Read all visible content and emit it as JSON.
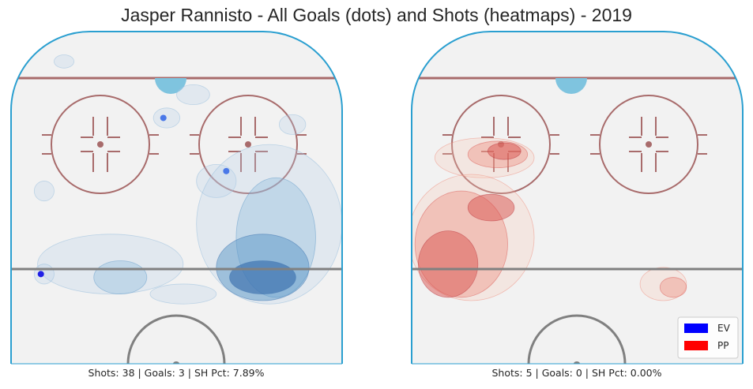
{
  "chart_data": {
    "type": "heatmap",
    "title": "Jasper Rannisto - All Goals (dots) and Shots (heatmaps) - 2019",
    "legend": {
      "placement": "bottom-right",
      "entries": [
        {
          "label": "EV",
          "color": "#0000ff"
        },
        {
          "label": "PP",
          "color": "#ff0000"
        }
      ]
    },
    "panels": [
      {
        "name": "EV",
        "caption": "Shots: 38 | Goals: 3 | SH Pct: 7.89%",
        "shots": 38,
        "goals": 3,
        "sh_pct": 7.89,
        "heatmap_color": "#2166ac",
        "goal_dots": [
          {
            "x": 0.46,
            "y": 0.26
          },
          {
            "x": 0.65,
            "y": 0.42
          },
          {
            "x": 0.09,
            "y": 0.73
          }
        ],
        "heat_blobs": [
          {
            "cx": 0.76,
            "cy": 0.74,
            "rx": 0.1,
            "ry": 0.05,
            "level": 4
          },
          {
            "cx": 0.76,
            "cy": 0.71,
            "rx": 0.14,
            "ry": 0.1,
            "level": 3
          },
          {
            "cx": 0.8,
            "cy": 0.62,
            "rx": 0.12,
            "ry": 0.18,
            "level": 2
          },
          {
            "cx": 0.33,
            "cy": 0.74,
            "rx": 0.08,
            "ry": 0.05,
            "level": 2
          },
          {
            "cx": 0.62,
            "cy": 0.45,
            "rx": 0.06,
            "ry": 0.05,
            "level": 1
          },
          {
            "cx": 0.3,
            "cy": 0.7,
            "rx": 0.22,
            "ry": 0.09,
            "level": 1
          },
          {
            "cx": 0.78,
            "cy": 0.58,
            "rx": 0.22,
            "ry": 0.24,
            "level": 1
          },
          {
            "cx": 0.47,
            "cy": 0.26,
            "rx": 0.04,
            "ry": 0.03,
            "level": 1
          },
          {
            "cx": 0.55,
            "cy": 0.19,
            "rx": 0.05,
            "ry": 0.03,
            "level": 1
          },
          {
            "cx": 0.85,
            "cy": 0.28,
            "rx": 0.04,
            "ry": 0.03,
            "level": 1
          },
          {
            "cx": 0.16,
            "cy": 0.09,
            "rx": 0.03,
            "ry": 0.02,
            "level": 1
          },
          {
            "cx": 0.1,
            "cy": 0.48,
            "rx": 0.03,
            "ry": 0.03,
            "level": 1
          },
          {
            "cx": 0.1,
            "cy": 0.73,
            "rx": 0.03,
            "ry": 0.03,
            "level": 1
          },
          {
            "cx": 0.52,
            "cy": 0.79,
            "rx": 0.1,
            "ry": 0.03,
            "level": 1
          }
        ]
      },
      {
        "name": "PP",
        "caption": "Shots: 5 | Goals: 0 | SH Pct: 0.00%",
        "shots": 5,
        "goals": 0,
        "sh_pct": 0.0,
        "heatmap_color": "#d6604d",
        "goal_dots": [],
        "heat_blobs": [
          {
            "cx": 0.22,
            "cy": 0.38,
            "rx": 0.15,
            "ry": 0.06,
            "level": 1
          },
          {
            "cx": 0.26,
            "cy": 0.37,
            "rx": 0.09,
            "ry": 0.04,
            "level": 2
          },
          {
            "cx": 0.28,
            "cy": 0.36,
            "rx": 0.05,
            "ry": 0.025,
            "level": 3
          },
          {
            "cx": 0.18,
            "cy": 0.62,
            "rx": 0.19,
            "ry": 0.19,
            "level": 1
          },
          {
            "cx": 0.15,
            "cy": 0.64,
            "rx": 0.14,
            "ry": 0.16,
            "level": 2
          },
          {
            "cx": 0.11,
            "cy": 0.7,
            "rx": 0.09,
            "ry": 0.1,
            "level": 3
          },
          {
            "cx": 0.24,
            "cy": 0.53,
            "rx": 0.07,
            "ry": 0.04,
            "level": 3
          },
          {
            "cx": 0.76,
            "cy": 0.76,
            "rx": 0.07,
            "ry": 0.05,
            "level": 1
          },
          {
            "cx": 0.79,
            "cy": 0.77,
            "rx": 0.04,
            "ry": 0.03,
            "level": 2
          }
        ]
      }
    ]
  }
}
